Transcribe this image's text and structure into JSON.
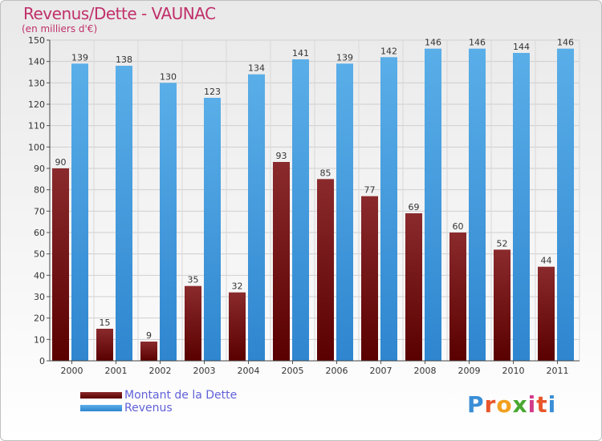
{
  "header": {
    "title": "Revenus/Dette - VAUNAC",
    "subtitle": "(en milliers d'€)"
  },
  "legend": {
    "debt_label": "Montant de la Dette",
    "revenue_label": "Revenus"
  },
  "logo": {
    "text": "Proxiti",
    "letters": [
      "P",
      "r",
      "o",
      "x",
      "i",
      "t",
      "i"
    ],
    "colors": [
      "#3a8fd6",
      "#e8562a",
      "#f2a01e",
      "#4aa832",
      "#d23a8a",
      "#e8562a",
      "#3a8fd6"
    ]
  },
  "colors": {
    "debt": "#7a1416",
    "revenue": "#4c9fe0"
  },
  "chart_data": {
    "type": "bar",
    "title": "Revenus/Dette - VAUNAC",
    "subtitle": "(en milliers d'€)",
    "categories": [
      "2000",
      "2001",
      "2002",
      "2003",
      "2004",
      "2005",
      "2006",
      "2007",
      "2008",
      "2009",
      "2010",
      "2011"
    ],
    "series": [
      {
        "name": "Montant de la Dette",
        "values": [
          90,
          15,
          9,
          35,
          32,
          93,
          85,
          77,
          69,
          60,
          52,
          44
        ]
      },
      {
        "name": "Revenus",
        "values": [
          139,
          138,
          130,
          123,
          134,
          141,
          139,
          142,
          146,
          146,
          144,
          146
        ]
      }
    ],
    "ylim": [
      0,
      150
    ],
    "yticks": [
      0,
      10,
      20,
      30,
      40,
      50,
      60,
      70,
      80,
      90,
      100,
      110,
      120,
      130,
      140,
      150
    ],
    "grid": true,
    "legend_position": "bottom-left"
  }
}
